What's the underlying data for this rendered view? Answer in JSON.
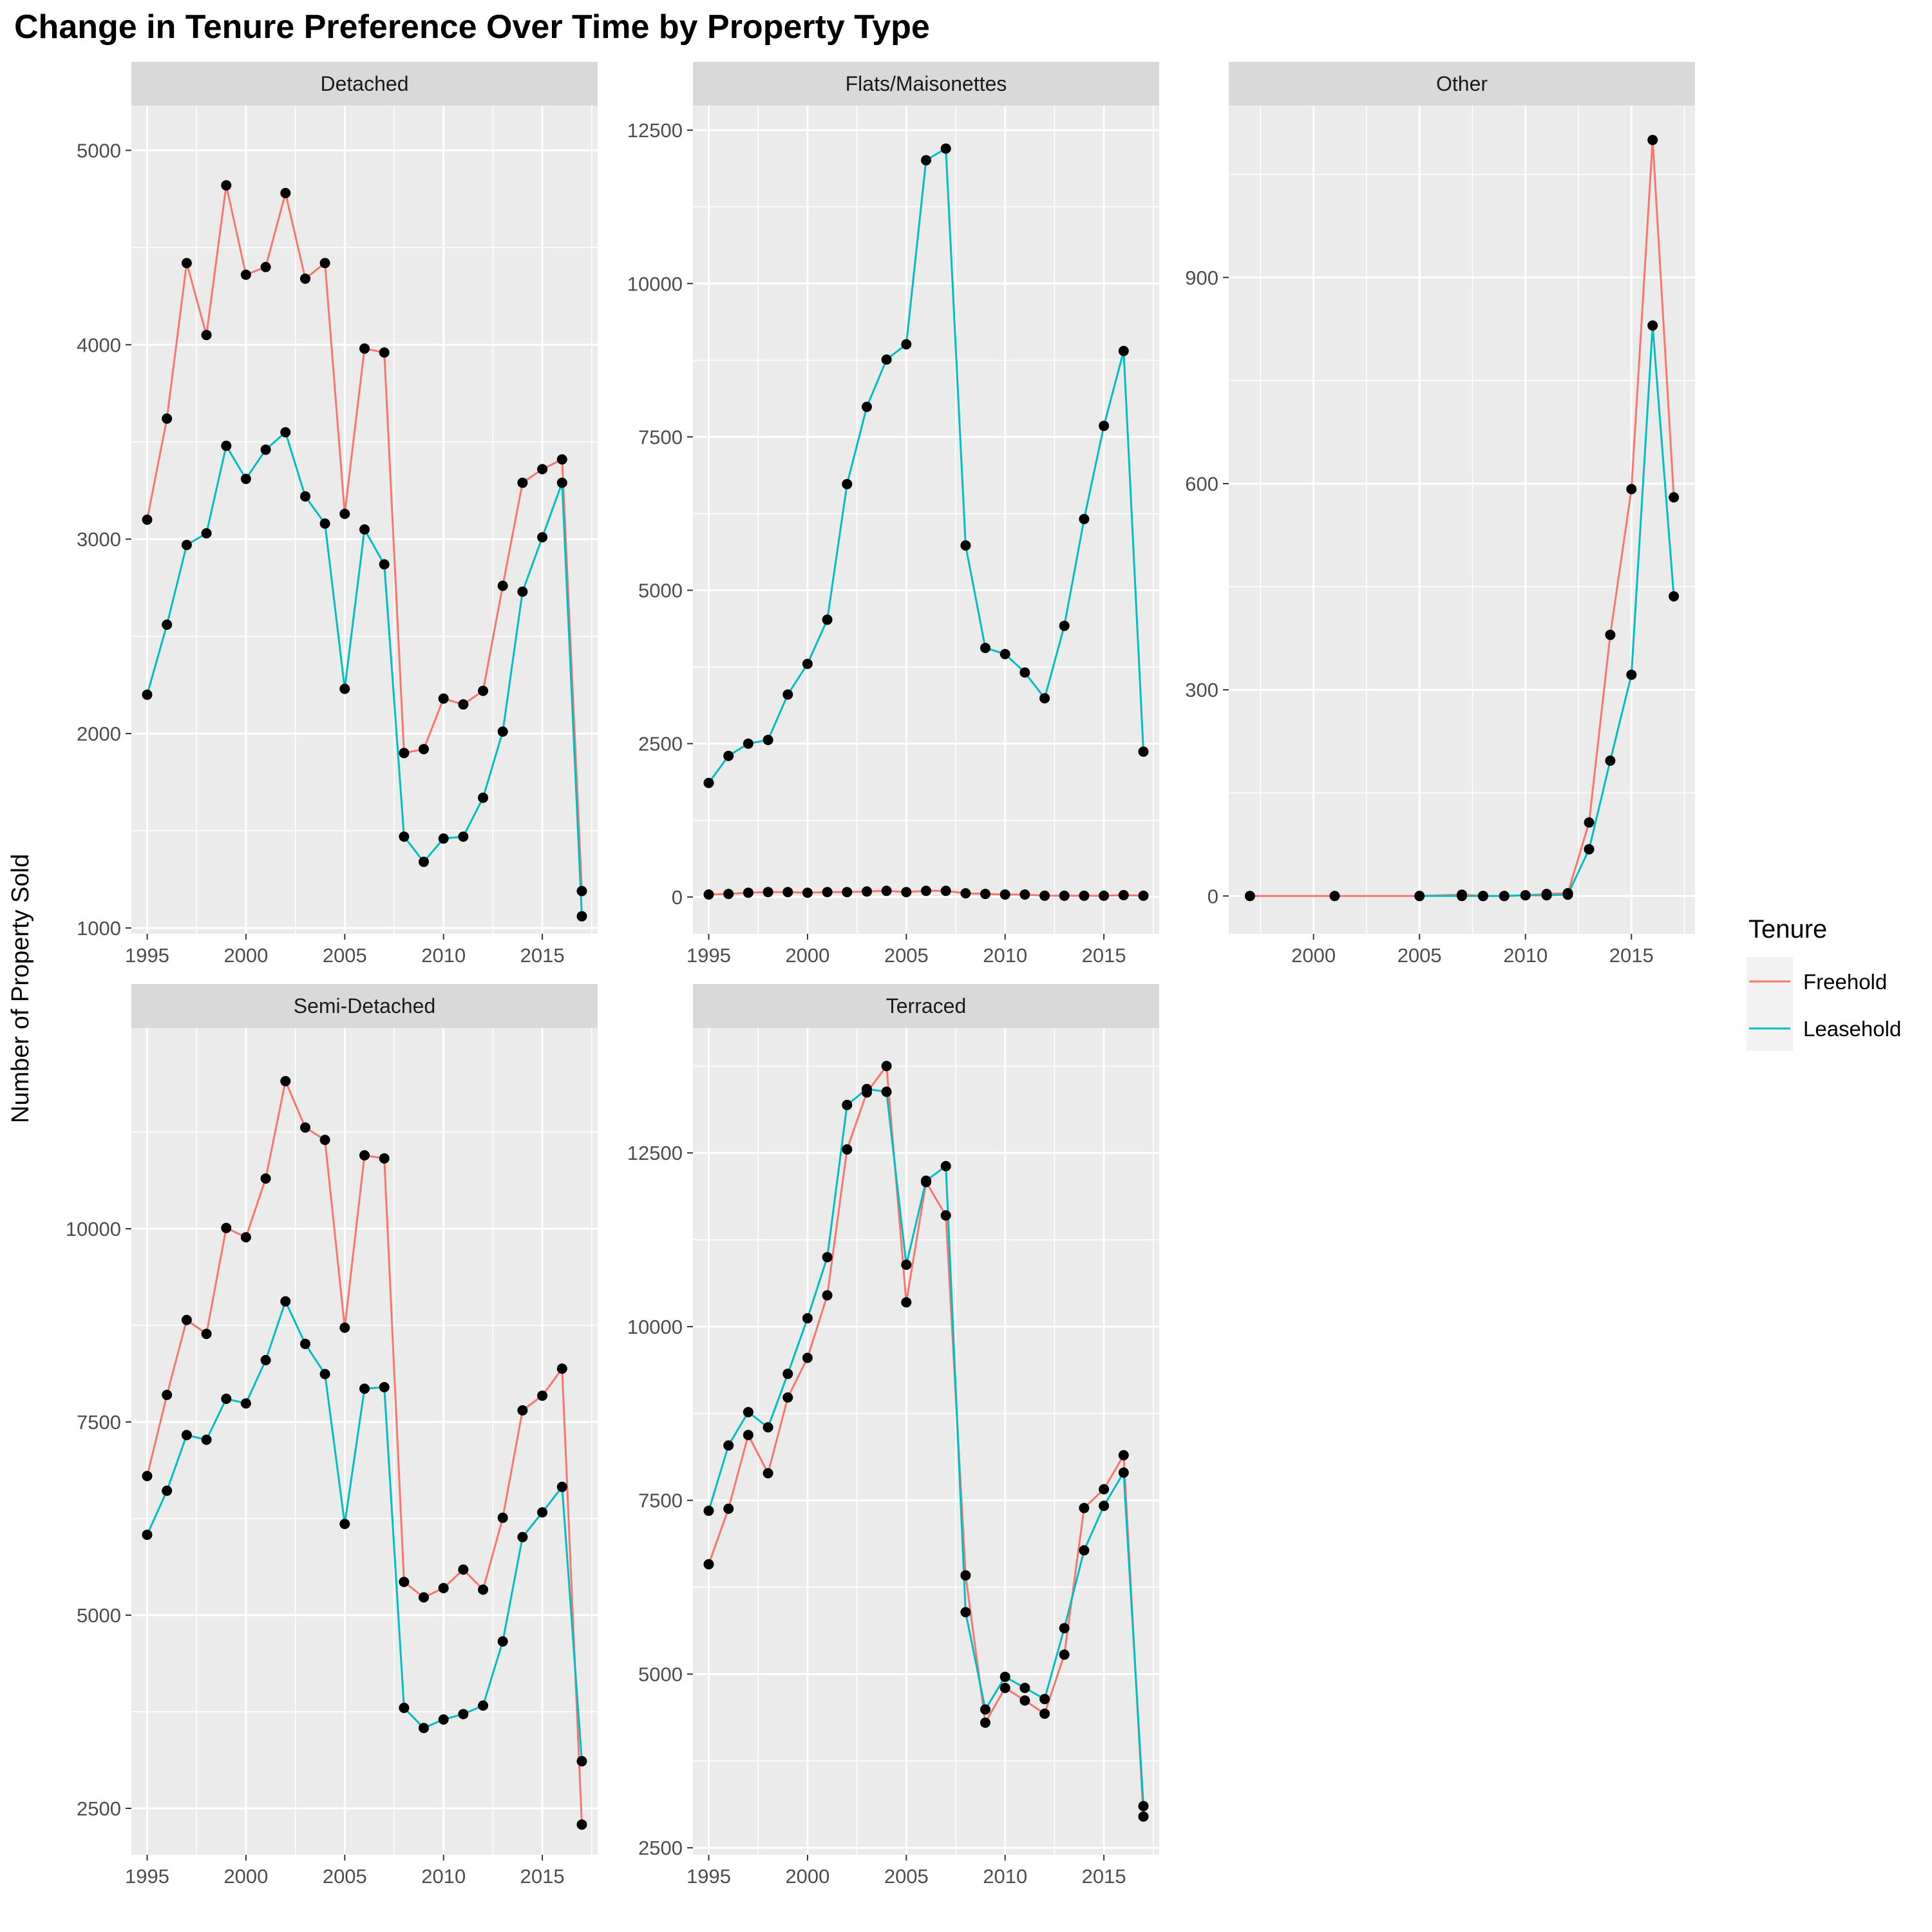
{
  "title": "Change in Tenure Preference Over Time by Property Type",
  "ylabel": "Number of Property Sold",
  "legend": {
    "title": "Tenure",
    "placement": "right",
    "entries": [
      {
        "name": "Freehold",
        "color": "#F8766D"
      },
      {
        "name": "Leasehold",
        "color": "#00BFC4"
      }
    ]
  },
  "colors": {
    "freehold": "#F8766D",
    "leasehold": "#00BFC4",
    "panel_bg": "#EBEBEB",
    "strip_bg": "#D9D9D9",
    "point": "#000000"
  },
  "chart_data": {
    "type": "line",
    "facet_by": "Property Type",
    "grid": true,
    "panels": [
      {
        "name": "Detached",
        "xlim": [
          1994.2,
          2017.8
        ],
        "ylim": [
          970,
          5230
        ],
        "xticks": [
          1995,
          2000,
          2005,
          2010,
          2015
        ],
        "yticks": [
          1000,
          2000,
          3000,
          4000,
          5000
        ],
        "series": [
          {
            "name": "Freehold",
            "x": [
              1995,
              1996,
              1997,
              1998,
              1999,
              2000,
              2001,
              2002,
              2003,
              2004,
              2005,
              2006,
              2007,
              2008,
              2009,
              2010,
              2011,
              2012,
              2013,
              2014,
              2015,
              2016,
              2017
            ],
            "y": [
              3100,
              3620,
              4420,
              4050,
              4820,
              4360,
              4400,
              4780,
              4340,
              4420,
              3130,
              3980,
              3960,
              1900,
              1920,
              2180,
              2150,
              2220,
              2760,
              3290,
              3360,
              3410,
              1190
            ]
          },
          {
            "name": "Leasehold",
            "x": [
              1995,
              1996,
              1997,
              1998,
              1999,
              2000,
              2001,
              2002,
              2003,
              2004,
              2005,
              2006,
              2007,
              2008,
              2009,
              2010,
              2011,
              2012,
              2013,
              2014,
              2015,
              2016,
              2017
            ],
            "y": [
              2200,
              2560,
              2970,
              3030,
              3480,
              3310,
              3460,
              3550,
              3220,
              3080,
              2230,
              3050,
              2870,
              1470,
              1340,
              1460,
              1470,
              1670,
              2010,
              2730,
              3010,
              3290,
              1060
            ]
          }
        ]
      },
      {
        "name": "Flats/Maisonettes",
        "xlim": [
          1994.2,
          2017.8
        ],
        "ylim": [
          -600,
          12900
        ],
        "xticks": [
          1995,
          2000,
          2005,
          2010,
          2015
        ],
        "yticks": [
          0,
          2500,
          5000,
          7500,
          10000,
          12500
        ],
        "series": [
          {
            "name": "Freehold",
            "x": [
              1995,
              1996,
              1997,
              1998,
              1999,
              2000,
              2001,
              2002,
              2003,
              2004,
              2005,
              2006,
              2007,
              2008,
              2009,
              2010,
              2011,
              2012,
              2013,
              2014,
              2015,
              2016,
              2017
            ],
            "y": [
              40,
              50,
              70,
              80,
              80,
              70,
              80,
              80,
              90,
              100,
              80,
              100,
              100,
              60,
              50,
              40,
              40,
              20,
              20,
              20,
              20,
              30,
              20
            ]
          },
          {
            "name": "Leasehold",
            "x": [
              1995,
              1996,
              1997,
              1998,
              1999,
              2000,
              2001,
              2002,
              2003,
              2004,
              2005,
              2006,
              2007,
              2008,
              2009,
              2010,
              2011,
              2012,
              2013,
              2014,
              2015,
              2016,
              2017
            ],
            "y": [
              1860,
              2300,
              2500,
              2560,
              3300,
              3800,
              4520,
              6730,
              7990,
              8760,
              9010,
              12010,
              12200,
              5730,
              4060,
              3960,
              3660,
              3240,
              4420,
              6160,
              7680,
              8900,
              2370
            ]
          }
        ]
      },
      {
        "name": "Other",
        "xlim": [
          1996.0,
          2018.0
        ],
        "ylim": [
          -55,
          1150
        ],
        "xticks": [
          2000,
          2005,
          2010,
          2015
        ],
        "yticks": [
          0,
          300,
          600,
          900
        ],
        "series": [
          {
            "name": "Freehold",
            "x": [
              1997,
              2001,
              2005,
              2007,
              2008,
              2009,
              2010,
              2011,
              2012,
              2013,
              2014,
              2015,
              2016,
              2017
            ],
            "y": [
              0,
              0,
              0,
              2,
              0,
              0,
              1,
              3,
              4,
              107,
              380,
              592,
              1100,
              580
            ]
          },
          {
            "name": "Leasehold",
            "x": [
              2005,
              2007,
              2008,
              2009,
              2010,
              2011,
              2012,
              2013,
              2014,
              2015,
              2016,
              2017
            ],
            "y": [
              0,
              0,
              0,
              0,
              1,
              1,
              2,
              68,
              197,
              322,
              830,
              436
            ]
          }
        ]
      },
      {
        "name": "Semi-Detached",
        "xlim": [
          1994.2,
          2017.8
        ],
        "ylim": [
          1900,
          12600
        ],
        "xticks": [
          1995,
          2000,
          2005,
          2010,
          2015
        ],
        "yticks": [
          2500,
          5000,
          7500,
          10000
        ],
        "series": [
          {
            "name": "Freehold",
            "x": [
              1995,
              1996,
              1997,
              1998,
              1999,
              2000,
              2001,
              2002,
              2003,
              2004,
              2005,
              2006,
              2007,
              2008,
              2009,
              2010,
              2011,
              2012,
              2013,
              2014,
              2015,
              2016,
              2017
            ],
            "y": [
              6800,
              7850,
              8820,
              8640,
              10010,
              9890,
              10650,
              11910,
              11310,
              11150,
              8720,
              10950,
              10910,
              5430,
              5230,
              5350,
              5590,
              5330,
              6260,
              7650,
              7840,
              8190,
              2290
            ]
          },
          {
            "name": "Leasehold",
            "x": [
              1995,
              1996,
              1997,
              1998,
              1999,
              2000,
              2001,
              2002,
              2003,
              2004,
              2005,
              2006,
              2007,
              2008,
              2009,
              2010,
              2011,
              2012,
              2013,
              2014,
              2015,
              2016,
              2017
            ],
            "y": [
              6040,
              6610,
              7330,
              7270,
              7800,
              7740,
              8300,
              9060,
              8510,
              8120,
              6180,
              7930,
              7950,
              3800,
              3540,
              3650,
              3720,
              3830,
              4660,
              6010,
              6330,
              6660,
              3110
            ]
          }
        ]
      },
      {
        "name": "Terraced",
        "xlim": [
          1994.2,
          2017.8
        ],
        "ylim": [
          2400,
          14300
        ],
        "xticks": [
          1995,
          2000,
          2005,
          2010,
          2015
        ],
        "yticks": [
          2500,
          5000,
          7500,
          10000,
          12500
        ],
        "series": [
          {
            "name": "Freehold",
            "x": [
              1995,
              1996,
              1997,
              1998,
              1999,
              2000,
              2001,
              2002,
              2003,
              2004,
              2005,
              2006,
              2007,
              2008,
              2009,
              2010,
              2011,
              2012,
              2013,
              2014,
              2015,
              2016,
              2017
            ],
            "y": [
              6580,
              7380,
              8440,
              7890,
              8980,
              9550,
              10450,
              12550,
              13370,
              13750,
              10350,
              12080,
              11600,
              6420,
              4300,
              4800,
              4620,
              4430,
              5280,
              7390,
              7660,
              8150,
              2950
            ]
          },
          {
            "name": "Leasehold",
            "x": [
              1995,
              1996,
              1997,
              1998,
              1999,
              2000,
              2001,
              2002,
              2003,
              2004,
              2005,
              2006,
              2007,
              2008,
              2009,
              2010,
              2011,
              2012,
              2013,
              2014,
              2015,
              2016,
              2017
            ],
            "y": [
              7350,
              8290,
              8770,
              8550,
              9320,
              10120,
              11000,
              13190,
              13420,
              13380,
              10890,
              12100,
              12310,
              5890,
              4490,
              4960,
              4800,
              4640,
              5660,
              6780,
              7420,
              7900,
              3100
            ]
          }
        ]
      }
    ]
  }
}
